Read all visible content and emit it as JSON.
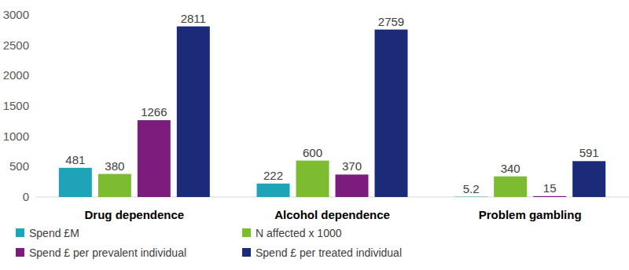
{
  "chart_data": {
    "type": "bar",
    "categories": [
      "Drug dependence",
      "Alcohol dependence",
      "Problem gambling"
    ],
    "series": [
      {
        "name": "Spend £M",
        "color": "#1fa3b9",
        "values": [
          481,
          222,
          5.2
        ]
      },
      {
        "name": "N affected x 1000",
        "color": "#7dbb30",
        "values": [
          380,
          600,
          340
        ]
      },
      {
        "name": "Spend £ per prevalent individual",
        "color": "#7c1d7e",
        "values": [
          1266,
          370,
          15
        ]
      },
      {
        "name": "Spend £ per treated individual",
        "color": "#1b2a79",
        "values": [
          2811,
          2759,
          591
        ]
      }
    ],
    "ylim": [
      0,
      3000
    ],
    "yticks": [
      0,
      500,
      1000,
      1500,
      2000,
      2500,
      3000
    ],
    "grid": false,
    "legend": "bottom",
    "data_labels": true
  }
}
